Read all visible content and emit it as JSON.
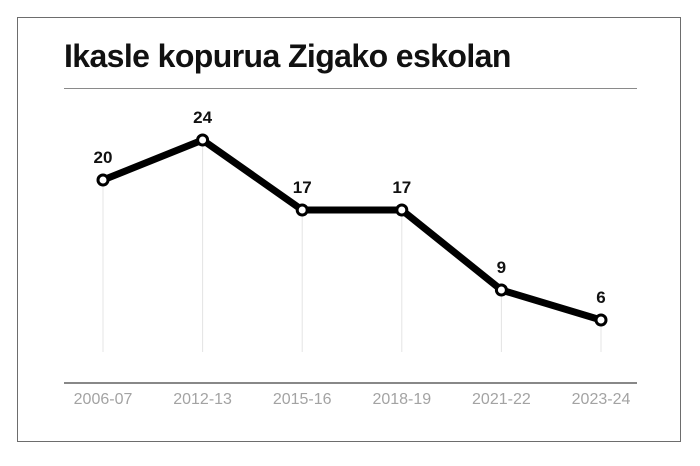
{
  "chart_data": {
    "type": "line",
    "title": "Ikasle kopurua Zigako eskolan",
    "categories": [
      "2006-07",
      "2012-13",
      "2015-16",
      "2018-19",
      "2021-22",
      "2023-24"
    ],
    "values": [
      20,
      24,
      17,
      17,
      9,
      6
    ],
    "xlabel": "",
    "ylabel": "",
    "ylim": [
      0,
      30
    ],
    "grid": "vertical",
    "colors": {
      "line": "#000000",
      "marker_fill": "#ffffff",
      "grid": "#e4e4e4",
      "axis": "#111111",
      "tick_text": "#a3a3a3"
    }
  }
}
